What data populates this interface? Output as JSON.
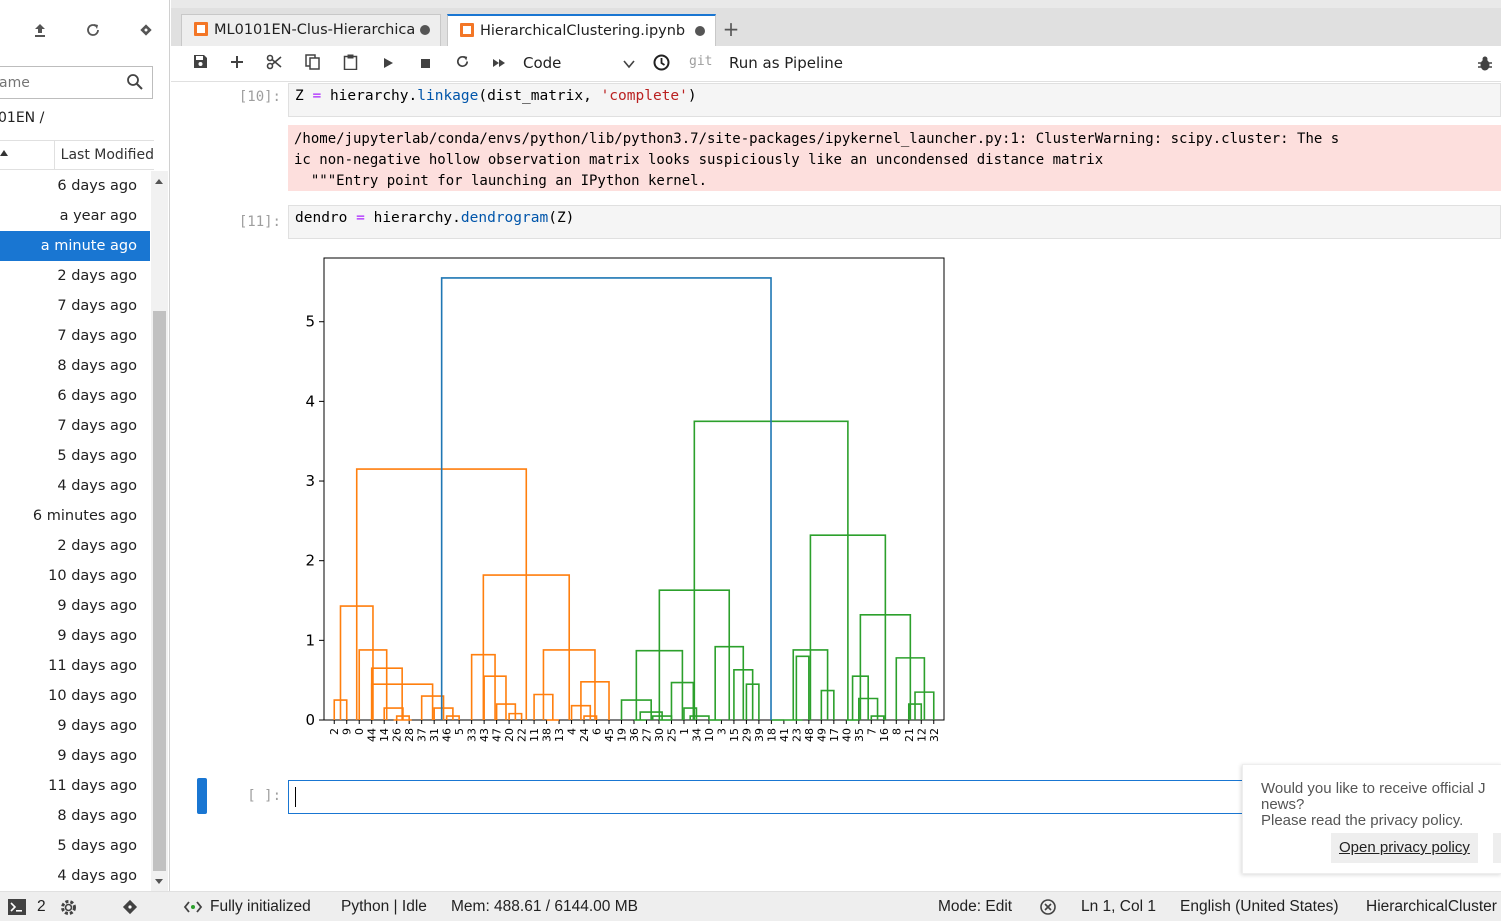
{
  "filebrowser": {
    "filter_placeholder": "ame",
    "path": "01EN /",
    "column_last_modified": "Last Modified",
    "rows": [
      "6 days ago",
      "a year ago",
      "a minute ago",
      "2 days ago",
      "7 days ago",
      "7 days ago",
      "8 days ago",
      "6 days ago",
      "7 days ago",
      "5 days ago",
      "4 days ago",
      "6 minutes ago",
      "2 days ago",
      "10 days ago",
      "9 days ago",
      "9 days ago",
      "11 days ago",
      "10 days ago",
      "9 days ago",
      "9 days ago",
      "11 days ago",
      "8 days ago",
      "5 days ago",
      "4 days ago"
    ],
    "selected_index": 2
  },
  "tabs": [
    {
      "label": "ML0101EN-Clus-Hierarchicа",
      "active": false
    },
    {
      "label": "HierarchicalClustering.ipynb",
      "active": true
    }
  ],
  "toolbar": {
    "cell_type": "Code",
    "git": "git",
    "run_pipeline": "Run as Pipeline"
  },
  "cells": {
    "c10": {
      "prompt": "[10]:",
      "code_var": "Z",
      "code_eq": "=",
      "code_obj": "hierarchy.",
      "code_fn": "linkage",
      "code_args": "(dist_matrix, ",
      "code_str": "'complete'",
      "code_close": ")",
      "stderr": "/home/jupyterlab/conda/envs/python/lib/python3.7/site-packages/ipykernel_launcher.py:1: ClusterWarning: scipy.cluster: The s\nic non-negative hollow observation matrix looks suspiciously like an uncondensed distance matrix\n  \"\"\"Entry point for launching an IPython kernel."
    },
    "c11": {
      "prompt": "[11]:",
      "code_var": "dendro",
      "code_eq": "=",
      "code_obj": "hierarchy.",
      "code_fn": "dendrogram",
      "code_args": "(Z)"
    },
    "empty_prompt": "[ ]:"
  },
  "chart_data": {
    "type": "dendrogram",
    "ylim": [
      0,
      5.8
    ],
    "yticks": [
      0,
      1,
      2,
      3,
      4,
      5
    ],
    "leaves": [
      "2",
      "9",
      "0",
      "44",
      "14",
      "26",
      "28",
      "37",
      "31",
      "46",
      "5",
      "33",
      "43",
      "47",
      "20",
      "22",
      "11",
      "38",
      "13",
      "4",
      "24",
      "6",
      "45",
      "19",
      "36",
      "27",
      "30",
      "25",
      "1",
      "34",
      "10",
      "3",
      "15",
      "29",
      "39",
      "18",
      "41",
      "23",
      "48",
      "49",
      "17",
      "40",
      "35",
      "7",
      "16",
      "8",
      "21",
      "12",
      "32"
    ],
    "colors": {
      "cluster1": "#ff7f0e",
      "cluster2": "#2ca02c",
      "root": "#1f77b4"
    },
    "merges": [
      {
        "l": [
          0,
          1
        ],
        "h": 0.25,
        "c": "cluster1"
      },
      {
        "l": [
          5,
          6
        ],
        "h": 0.05,
        "c": "cluster1"
      },
      {
        "l": [
          4,
          5.5
        ],
        "h": 0.15,
        "c": "cluster1"
      },
      {
        "l": [
          9,
          10
        ],
        "h": 0.05,
        "c": "cluster1"
      },
      {
        "l": [
          8,
          9.5
        ],
        "h": 0.15,
        "c": "cluster1"
      },
      {
        "l": [
          7,
          8.75
        ],
        "h": 0.3,
        "c": "cluster1"
      },
      {
        "l": [
          3,
          7.875
        ],
        "h": 0.45,
        "c": "cluster1"
      },
      {
        "l": [
          3,
          5.4375
        ],
        "h": 0.65,
        "c": "cluster1"
      },
      {
        "l": [
          4.75,
          6.2
        ],
        "h": 0.0,
        "c": "cluster1"
      },
      {
        "l": [
          2,
          4.2
        ],
        "h": 0.88,
        "c": "cluster1"
      },
      {
        "l": [
          0.5,
          3.1
        ],
        "h": 1.43,
        "c": "cluster1"
      },
      {
        "l": [
          14,
          15
        ],
        "h": 0.08,
        "c": "cluster1"
      },
      {
        "l": [
          13,
          14.5
        ],
        "h": 0.2,
        "c": "cluster1"
      },
      {
        "l": [
          12,
          13.75
        ],
        "h": 0.55,
        "c": "cluster1"
      },
      {
        "l": [
          11,
          12.875
        ],
        "h": 0.82,
        "c": "cluster1"
      },
      {
        "l": [
          17,
          18
        ],
        "h": 0.0,
        "c": "cluster1"
      },
      {
        "l": [
          16,
          17.5
        ],
        "h": 0.32,
        "c": "cluster1"
      },
      {
        "l": [
          20,
          21
        ],
        "h": 0.05,
        "c": "cluster1"
      },
      {
        "l": [
          19,
          20.5
        ],
        "h": 0.18,
        "c": "cluster1"
      },
      {
        "l": [
          19.75,
          22
        ],
        "h": 0.48,
        "c": "cluster1"
      },
      {
        "l": [
          16.75,
          20.875
        ],
        "h": 0.88,
        "c": "cluster1"
      },
      {
        "l": [
          11.9375,
          18.8125
        ],
        "h": 1.82,
        "c": "cluster1"
      },
      {
        "l": [
          1.8,
          15.375
        ],
        "h": 3.15,
        "c": "cluster1"
      },
      {
        "l": [
          24,
          25
        ],
        "h": 0.0,
        "c": "cluster2"
      },
      {
        "l": [
          26,
          27
        ],
        "h": 0.0,
        "c": "cluster2"
      },
      {
        "l": [
          25.5,
          27
        ],
        "h": 0.05,
        "c": "cluster2"
      },
      {
        "l": [
          24.5,
          26.25
        ],
        "h": 0.1,
        "c": "cluster2"
      },
      {
        "l": [
          23,
          25.375
        ],
        "h": 0.25,
        "c": "cluster2"
      },
      {
        "l": [
          28,
          29
        ],
        "h": 0.15,
        "c": "cluster2"
      },
      {
        "l": [
          28.5,
          30
        ],
        "h": 0.05,
        "c": "cluster2"
      },
      {
        "l": [
          27,
          28.75
        ],
        "h": 0.47,
        "c": "cluster2"
      },
      {
        "l": [
          24.1875,
          27.875
        ],
        "h": 0.87,
        "c": "cluster2"
      },
      {
        "l": [
          30,
          31
        ],
        "h": 0.0,
        "c": "cluster2"
      },
      {
        "l": [
          33,
          34
        ],
        "h": 0.45,
        "c": "cluster2"
      },
      {
        "l": [
          32,
          33.5
        ],
        "h": 0.63,
        "c": "cluster2"
      },
      {
        "l": [
          30.5,
          32.75
        ],
        "h": 0.92,
        "c": "cluster2"
      },
      {
        "l": [
          26.03,
          31.625
        ],
        "h": 1.63,
        "c": "cluster2"
      },
      {
        "l": [
          35,
          36
        ],
        "h": 0.0,
        "c": "cluster2"
      },
      {
        "l": [
          37,
          38
        ],
        "h": 0.8,
        "c": "cluster2"
      },
      {
        "l": [
          36,
          37.5
        ],
        "h": 0.0,
        "c": "cluster2"
      },
      {
        "l": [
          39,
          40
        ],
        "h": 0.37,
        "c": "cluster2"
      },
      {
        "l": [
          36.75,
          39.5
        ],
        "h": 0.88,
        "c": "cluster2"
      },
      {
        "l": [
          41,
          42
        ],
        "h": 0.0,
        "c": "cluster2"
      },
      {
        "l": [
          43,
          44
        ],
        "h": 0.05,
        "c": "cluster2"
      },
      {
        "l": [
          42,
          43.5
        ],
        "h": 0.27,
        "c": "cluster2"
      },
      {
        "l": [
          41.5,
          42.75
        ],
        "h": 0.55,
        "c": "cluster2"
      },
      {
        "l": [
          46,
          47
        ],
        "h": 0.2,
        "c": "cluster2"
      },
      {
        "l": [
          46.5,
          48
        ],
        "h": 0.35,
        "c": "cluster2"
      },
      {
        "l": [
          45,
          47.25
        ],
        "h": 0.78,
        "c": "cluster2"
      },
      {
        "l": [
          42.125,
          46.125
        ],
        "h": 1.32,
        "c": "cluster2"
      },
      {
        "l": [
          38.125,
          44.125
        ],
        "h": 2.32,
        "c": "cluster2"
      },
      {
        "l": [
          28.83,
          41.125
        ],
        "h": 3.75,
        "c": "cluster2"
      },
      {
        "l": [
          8.6,
          34.97
        ],
        "h": 5.55,
        "c": "root"
      }
    ]
  },
  "notification": {
    "line1": "Would you like to receive official J",
    "line2": "news?",
    "line3": "Please read the privacy policy.",
    "button": "Open privacy policy"
  },
  "statusbar": {
    "terminals": "2",
    "kernel_status": "Fully initialized",
    "kernel": "Python | Idle",
    "mem": "Mem: 488.61 / 6144.00 MB",
    "mode": "Mode: Edit",
    "cursor": "Ln 1, Col 1",
    "language": "English (United States)",
    "file": "HierarchicalCluster"
  }
}
